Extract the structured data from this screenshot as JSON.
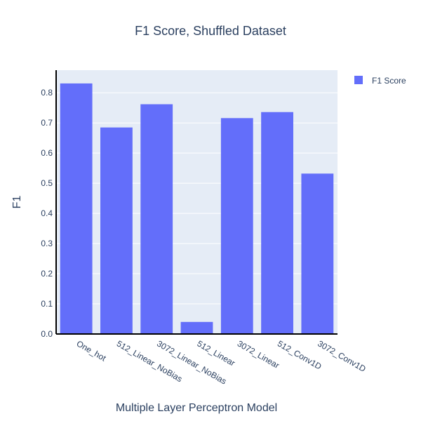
{
  "chart_data": {
    "type": "bar",
    "title": "F1 Score, Shuffled Dataset",
    "xlabel": "Multiple Layer Perceptron Model",
    "ylabel": "F1",
    "categories": [
      "One_hot",
      "512_Linear_NoBias",
      "3072_Linear_NoBias",
      "512_Linear",
      "3072_Linear",
      "512_Conv1D",
      "3072_Conv1D"
    ],
    "series": [
      {
        "name": "F1 Score",
        "values": [
          0.831,
          0.685,
          0.762,
          0.04,
          0.716,
          0.736,
          0.532
        ]
      }
    ],
    "ylim": [
      0,
      0.875
    ],
    "yticks": [
      "0.0",
      "0.1",
      "0.2",
      "0.3",
      "0.4",
      "0.5",
      "0.6",
      "0.7",
      "0.8"
    ],
    "grid": true,
    "legend_position": "top-right",
    "colors": {
      "bar": "#636efa",
      "plot_bg": "#e5ecf6",
      "grid": "#ffffff",
      "axis_line": "#000000",
      "text": "#2a3f5f"
    }
  }
}
